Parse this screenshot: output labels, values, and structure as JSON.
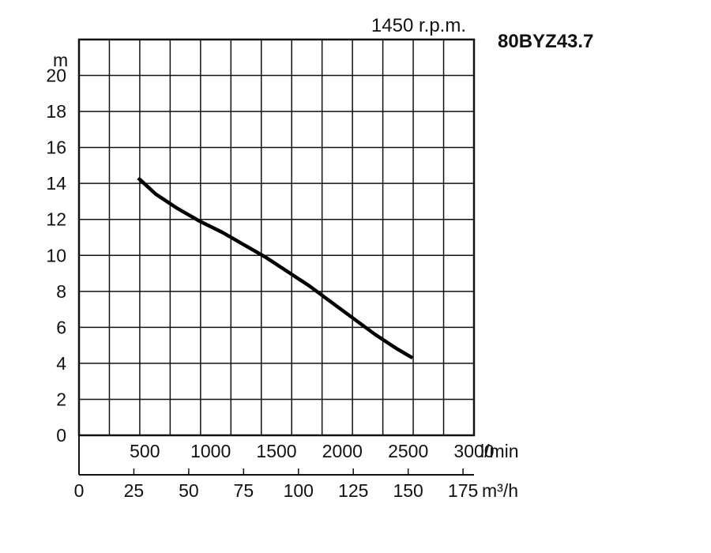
{
  "header": {
    "speed_label": "1450 r.p.m.",
    "model": "80BYZ43.7"
  },
  "chart_data": {
    "type": "line",
    "title": "",
    "ylabel": "m",
    "ylim": [
      0,
      22
    ],
    "yticks": [
      0,
      2,
      4,
      6,
      8,
      10,
      12,
      14,
      16,
      18,
      20
    ],
    "x_flow_lmin": {
      "unit": "l/min",
      "ticks": [
        500,
        1000,
        1500,
        2000,
        2500,
        3000
      ]
    },
    "x_flow_m3h": {
      "unit": "m³/h",
      "ticks": [
        0,
        25,
        50,
        75,
        100,
        125,
        150,
        175
      ],
      "xlim": [
        0,
        180
      ]
    },
    "grid": true,
    "series": [
      {
        "x": [
          27,
          35,
          45,
          55,
          65,
          75,
          85,
          95,
          105,
          115,
          125,
          135,
          145,
          152
        ],
        "y": [
          14.3,
          13.4,
          12.6,
          11.9,
          11.3,
          10.6,
          9.9,
          9.1,
          8.3,
          7.4,
          6.5,
          5.6,
          4.8,
          4.3
        ]
      }
    ]
  }
}
